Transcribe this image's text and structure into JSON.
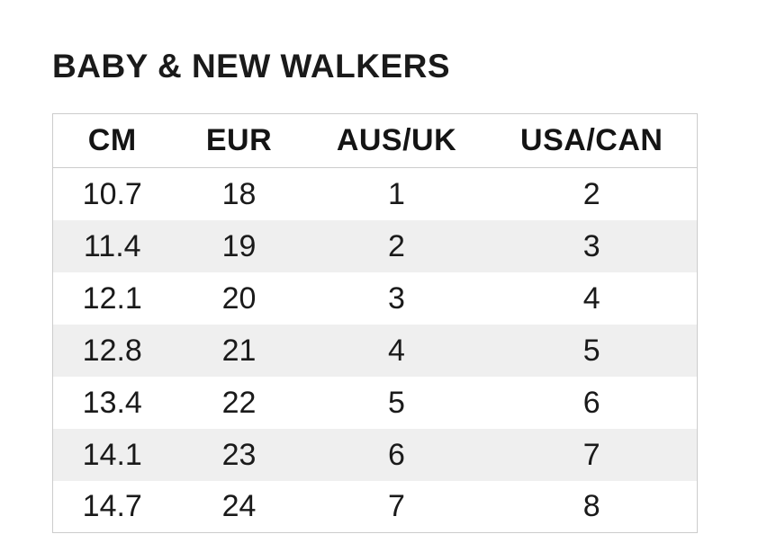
{
  "page": {
    "title": "BABY & NEW WALKERS"
  },
  "size_chart": {
    "columns": [
      "CM",
      "EUR",
      "AUS/UK",
      "USA/CAN"
    ],
    "rows": [
      [
        "10.7",
        "18",
        "1",
        "2"
      ],
      [
        "11.4",
        "19",
        "2",
        "3"
      ],
      [
        "12.1",
        "20",
        "3",
        "4"
      ],
      [
        "12.8",
        "21",
        "4",
        "5"
      ],
      [
        "13.4",
        "22",
        "5",
        "6"
      ],
      [
        "14.1",
        "23",
        "6",
        "7"
      ],
      [
        "14.7",
        "24",
        "7",
        "8"
      ]
    ]
  },
  "chart_data": {
    "type": "table",
    "title": "BABY & NEW WALKERS",
    "columns": [
      "CM",
      "EUR",
      "AUS/UK",
      "USA/CAN"
    ],
    "rows": [
      [
        10.7,
        18,
        1,
        2
      ],
      [
        11.4,
        19,
        2,
        3
      ],
      [
        12.1,
        20,
        3,
        4
      ],
      [
        12.8,
        21,
        4,
        5
      ],
      [
        13.4,
        22,
        5,
        6
      ],
      [
        14.1,
        23,
        6,
        7
      ],
      [
        14.7,
        24,
        7,
        8
      ]
    ]
  },
  "colors": {
    "text": "#1a1a1a",
    "border": "#cccccc",
    "zebra_row": "#efefef",
    "background": "#ffffff"
  }
}
